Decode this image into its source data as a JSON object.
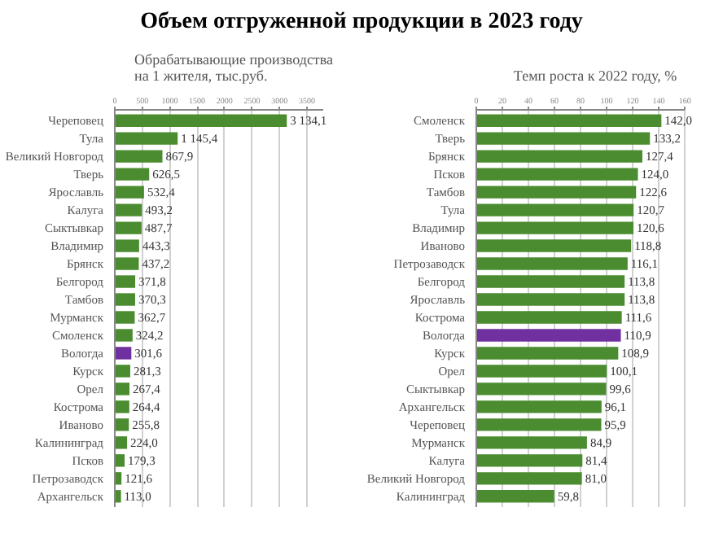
{
  "chart_data": [
    {
      "type": "bar",
      "orientation": "horizontal",
      "title": "Объем отгруженной продукции в 2023 году",
      "subtitle": "Обрабатывающие производства\nна 1 жителя, тыс.руб.",
      "categories": [
        "Череповец",
        "Тула",
        "Великий Новгород",
        "Тверь",
        "Ярославль",
        "Калуга",
        "Сыктывкар",
        "Владимир",
        "Брянск",
        "Белгород",
        "Тамбов",
        "Мурманск",
        "Смоленск",
        "Вологда",
        "Курск",
        "Орел",
        "Кострома",
        "Иваново",
        "Калининград",
        "Псков",
        "Петрозаводск",
        "Архангельск"
      ],
      "values": [
        3134.1,
        1145.4,
        867.9,
        626.5,
        532.4,
        493.2,
        487.7,
        443.3,
        437.2,
        371.8,
        370.3,
        362.7,
        324.2,
        301.6,
        281.3,
        267.4,
        264.4,
        255.8,
        224.0,
        179.3,
        121.6,
        113.0
      ],
      "value_labels": [
        "3 134,1",
        "1 145,4",
        "867,9",
        "626,5",
        "532,4",
        "493,2",
        "487,7",
        "443,3",
        "437,2",
        "371,8",
        "370,3",
        "362,7",
        "324,2",
        "301,6",
        "281,3",
        "267,4",
        "264,4",
        "255,8",
        "224,0",
        "179,3",
        "121,6",
        "113,0"
      ],
      "colors": [
        "#4a8c2f",
        "#4a8c2f",
        "#4a8c2f",
        "#4a8c2f",
        "#4a8c2f",
        "#4a8c2f",
        "#4a8c2f",
        "#4a8c2f",
        "#4a8c2f",
        "#4a8c2f",
        "#4a8c2f",
        "#4a8c2f",
        "#4a8c2f",
        "#7030a0",
        "#4a8c2f",
        "#4a8c2f",
        "#4a8c2f",
        "#4a8c2f",
        "#4a8c2f",
        "#4a8c2f",
        "#4a8c2f",
        "#4a8c2f"
      ],
      "xlim": [
        0,
        3800
      ],
      "xticks": [
        0,
        500,
        1000,
        1500,
        2000,
        2500,
        3000,
        3500
      ],
      "grid": "x"
    },
    {
      "type": "bar",
      "orientation": "horizontal",
      "subtitle": "Темп роста к 2022 году, %",
      "categories": [
        "Смоленск",
        "Тверь",
        "Брянск",
        "Псков",
        "Тамбов",
        "Тула",
        "Владимир",
        "Иваново",
        "Петрозаводск",
        "Белгород",
        "Ярославль",
        "Кострома",
        "Вологда",
        "Курск",
        "Орел",
        "Сыктывкар",
        "Архангельск",
        "Череповец",
        "Мурманск",
        "Калуга",
        "Великий Новгород",
        "Калининград"
      ],
      "values": [
        142.0,
        133.2,
        127.4,
        124.0,
        122.6,
        120.7,
        120.6,
        118.8,
        116.1,
        113.8,
        113.8,
        111.6,
        110.9,
        108.9,
        100.1,
        99.6,
        96.1,
        95.9,
        84.9,
        81.4,
        81.0,
        59.8
      ],
      "value_labels": [
        "142,0",
        "133,2",
        "127,4",
        "124,0",
        "122,6",
        "120,7",
        "120,6",
        "118,8",
        "116,1",
        "113,8",
        "113,8",
        "111,6",
        "110,9",
        "108,9",
        "100,1",
        "99,6",
        "96,1",
        "95,9",
        "84,9",
        "81,4",
        "81,0",
        "59,8"
      ],
      "colors": [
        "#4a8c2f",
        "#4a8c2f",
        "#4a8c2f",
        "#4a8c2f",
        "#4a8c2f",
        "#4a8c2f",
        "#4a8c2f",
        "#4a8c2f",
        "#4a8c2f",
        "#4a8c2f",
        "#4a8c2f",
        "#4a8c2f",
        "#7030a0",
        "#4a8c2f",
        "#4a8c2f",
        "#4a8c2f",
        "#4a8c2f",
        "#4a8c2f",
        "#4a8c2f",
        "#4a8c2f",
        "#4a8c2f",
        "#4a8c2f"
      ],
      "xlim": [
        0,
        160
      ],
      "xticks": [
        0,
        20,
        40,
        60,
        80,
        100,
        120,
        140,
        160
      ],
      "grid": "x"
    }
  ]
}
